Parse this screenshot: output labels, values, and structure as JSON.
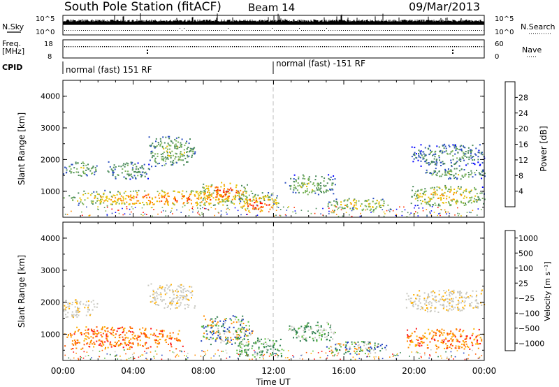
{
  "header": {
    "station": "South Pole Station (fitACF)",
    "beam": "Beam 14",
    "date": "09/Mar/2013"
  },
  "status_panels": {
    "nsky_label": "N.Sky",
    "nsky_top": "10^5",
    "nsky_bottom": "10^0",
    "nsearch_label": "N.Search",
    "nsearch_top": "10^5",
    "nsearch_bottom": "10^0",
    "freq_label": "Freq.",
    "freq_unit": "[MHz]",
    "freq_top": "18",
    "freq_bottom": "8",
    "nave_label": "Nave",
    "nave_top": "60",
    "nave_bottom": "0",
    "cpid_label": "CPID",
    "cpid_segments": [
      {
        "label": "normal (fast) 151 RF",
        "start_hour": 0
      },
      {
        "label": "normal (fast) -151 RF",
        "start_hour": 12
      }
    ]
  },
  "chart_data": [
    {
      "type": "heatmap",
      "panel": "power",
      "ylabel": "Slant Range [km]",
      "ylim": [
        180,
        4500
      ],
      "yticks": [
        1000,
        2000,
        3000,
        4000
      ],
      "xlim_hours": [
        0,
        24
      ],
      "colorbar_label": "Power [dB]",
      "colorbar_ticks": [
        "28",
        "24",
        "20",
        "16",
        "12",
        "8",
        "4"
      ],
      "colors": [
        "#0000ff",
        "#2a4fbf",
        "#4a8a5a",
        "#7ab35a",
        "#e8c000",
        "#ff8c00",
        "#ff3000",
        "#ff0000"
      ],
      "clusters": [
        {
          "t0": 0.0,
          "t1": 2.0,
          "r0": 1500,
          "r1": 1950,
          "lvl": 0.45
        },
        {
          "t0": 0.0,
          "t1": 12.0,
          "r0": 550,
          "r1": 1050,
          "lvl": 0.75
        },
        {
          "t0": 4.8,
          "t1": 7.5,
          "r0": 1800,
          "r1": 2750,
          "lvl": 0.45
        },
        {
          "t0": 2.5,
          "t1": 5.0,
          "r0": 1400,
          "r1": 1950,
          "lvl": 0.35
        },
        {
          "t0": 7.8,
          "t1": 10.5,
          "r0": 700,
          "r1": 1300,
          "lvl": 0.85
        },
        {
          "t0": 10.0,
          "t1": 12.3,
          "r0": 350,
          "r1": 900,
          "lvl": 0.9
        },
        {
          "t0": 12.6,
          "t1": 15.5,
          "r0": 900,
          "r1": 1550,
          "lvl": 0.45
        },
        {
          "t0": 15.0,
          "t1": 18.7,
          "r0": 400,
          "r1": 800,
          "lvl": 0.6
        },
        {
          "t0": 19.8,
          "t1": 24.0,
          "r0": 1800,
          "r1": 2500,
          "lvl": 0.3
        },
        {
          "t0": 19.8,
          "t1": 24.0,
          "r0": 550,
          "r1": 1200,
          "lvl": 0.65
        },
        {
          "t0": 20.5,
          "t1": 24.0,
          "r0": 1400,
          "r1": 1750,
          "lvl": 0.4
        }
      ]
    },
    {
      "type": "heatmap",
      "panel": "velocity",
      "ylabel": "Slant Range [km]",
      "ylim": [
        180,
        4500
      ],
      "yticks": [
        1000,
        2000,
        3000,
        4000
      ],
      "xlim_hours": [
        0,
        24
      ],
      "xticks": [
        "00:00",
        "04:00",
        "08:00",
        "12:00",
        "16:00",
        "20:00",
        "00:00"
      ],
      "xlabel": "Time UT",
      "colorbar_label": "Velocity [m s⁻¹]",
      "colorbar_ticks": [
        "1000",
        "500",
        "100",
        "25",
        "−25",
        "−100",
        "−500",
        "−1000"
      ],
      "colors": [
        "#1f3fbf",
        "#2f7f4f",
        "#5fbf3f",
        "#c8c8c0",
        "#ffb000",
        "#ff8c00",
        "#ff5a00",
        "#ff1010"
      ],
      "clusters": [
        {
          "t0": 0.0,
          "t1": 2.0,
          "r0": 1550,
          "r1": 2100,
          "v": "gray"
        },
        {
          "t0": 0.0,
          "t1": 6.8,
          "r0": 550,
          "r1": 1250,
          "v": "orange"
        },
        {
          "t0": 4.8,
          "t1": 7.5,
          "r0": 1800,
          "r1": 2600,
          "v": "gray"
        },
        {
          "t0": 7.8,
          "t1": 10.8,
          "r0": 700,
          "r1": 1600,
          "v": "mixed"
        },
        {
          "t0": 9.8,
          "t1": 12.5,
          "r0": 300,
          "r1": 900,
          "v": "green"
        },
        {
          "t0": 12.8,
          "t1": 15.5,
          "r0": 800,
          "r1": 1400,
          "v": "green"
        },
        {
          "t0": 15.0,
          "t1": 18.5,
          "r0": 400,
          "r1": 800,
          "v": "mixed"
        },
        {
          "t0": 19.5,
          "t1": 24.0,
          "r0": 1700,
          "r1": 2400,
          "v": "gray"
        },
        {
          "t0": 19.5,
          "t1": 24.0,
          "r0": 550,
          "r1": 1200,
          "v": "orange"
        }
      ]
    }
  ]
}
